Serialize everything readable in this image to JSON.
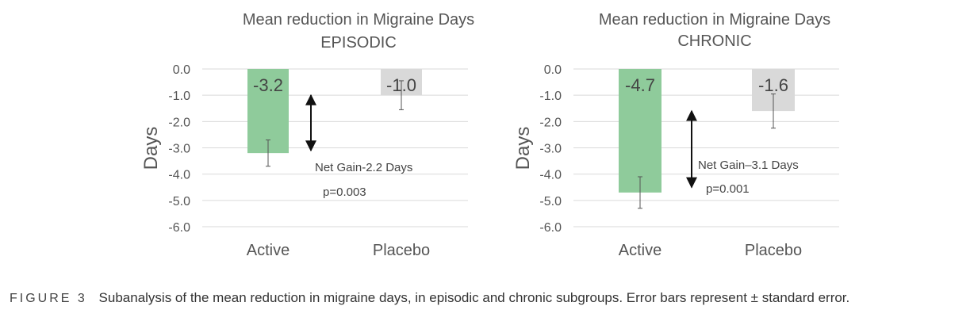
{
  "chart_data": [
    {
      "type": "bar",
      "title": [
        "Mean reduction in Migraine Days",
        "EPISODIC"
      ],
      "ylabel": "Days",
      "categories": [
        "Active",
        "Placebo"
      ],
      "values": [
        -3.2,
        -1.0
      ],
      "value_labels": [
        "-3.2",
        "-1.0"
      ],
      "error_bars": [
        0.5,
        0.55
      ],
      "ylim": [
        -6.0,
        0.0
      ],
      "yticks": [
        "0.0",
        "-1.0",
        "-2.0",
        "-3.0",
        "-4.0",
        "-5.0",
        "-6.0"
      ],
      "grid": true,
      "colors": [
        "#8fcb9b",
        "#d9d9d9"
      ],
      "annotation": {
        "net_gain": "Net Gain-2.2   Days",
        "p_value": "p=0.003",
        "arrow_from": -1.0,
        "arrow_to": -3.1
      }
    },
    {
      "type": "bar",
      "title": [
        "Mean reduction in Migraine Days",
        "CHRONIC"
      ],
      "ylabel": "Days",
      "categories": [
        "Active",
        "Placebo"
      ],
      "values": [
        -4.7,
        -1.6
      ],
      "value_labels": [
        "-4.7",
        "-1.6"
      ],
      "error_bars": [
        0.6,
        0.65
      ],
      "ylim": [
        -6.0,
        0.0
      ],
      "yticks": [
        "0.0",
        "-1.0",
        "-2.0",
        "-3.0",
        "-4.0",
        "-5.0",
        "-6.0"
      ],
      "grid": true,
      "colors": [
        "#8fcb9b",
        "#d9d9d9"
      ],
      "annotation": {
        "net_gain": "Net Gain–3.1 Days",
        "p_value": "p=0.001",
        "arrow_from": -1.6,
        "arrow_to": -4.5
      }
    }
  ],
  "caption": {
    "figure_label": "FIGURE 3",
    "text": "Subanalysis of the mean reduction in migraine days, in episodic and chronic subgroups. Error bars represent ± standard error."
  }
}
